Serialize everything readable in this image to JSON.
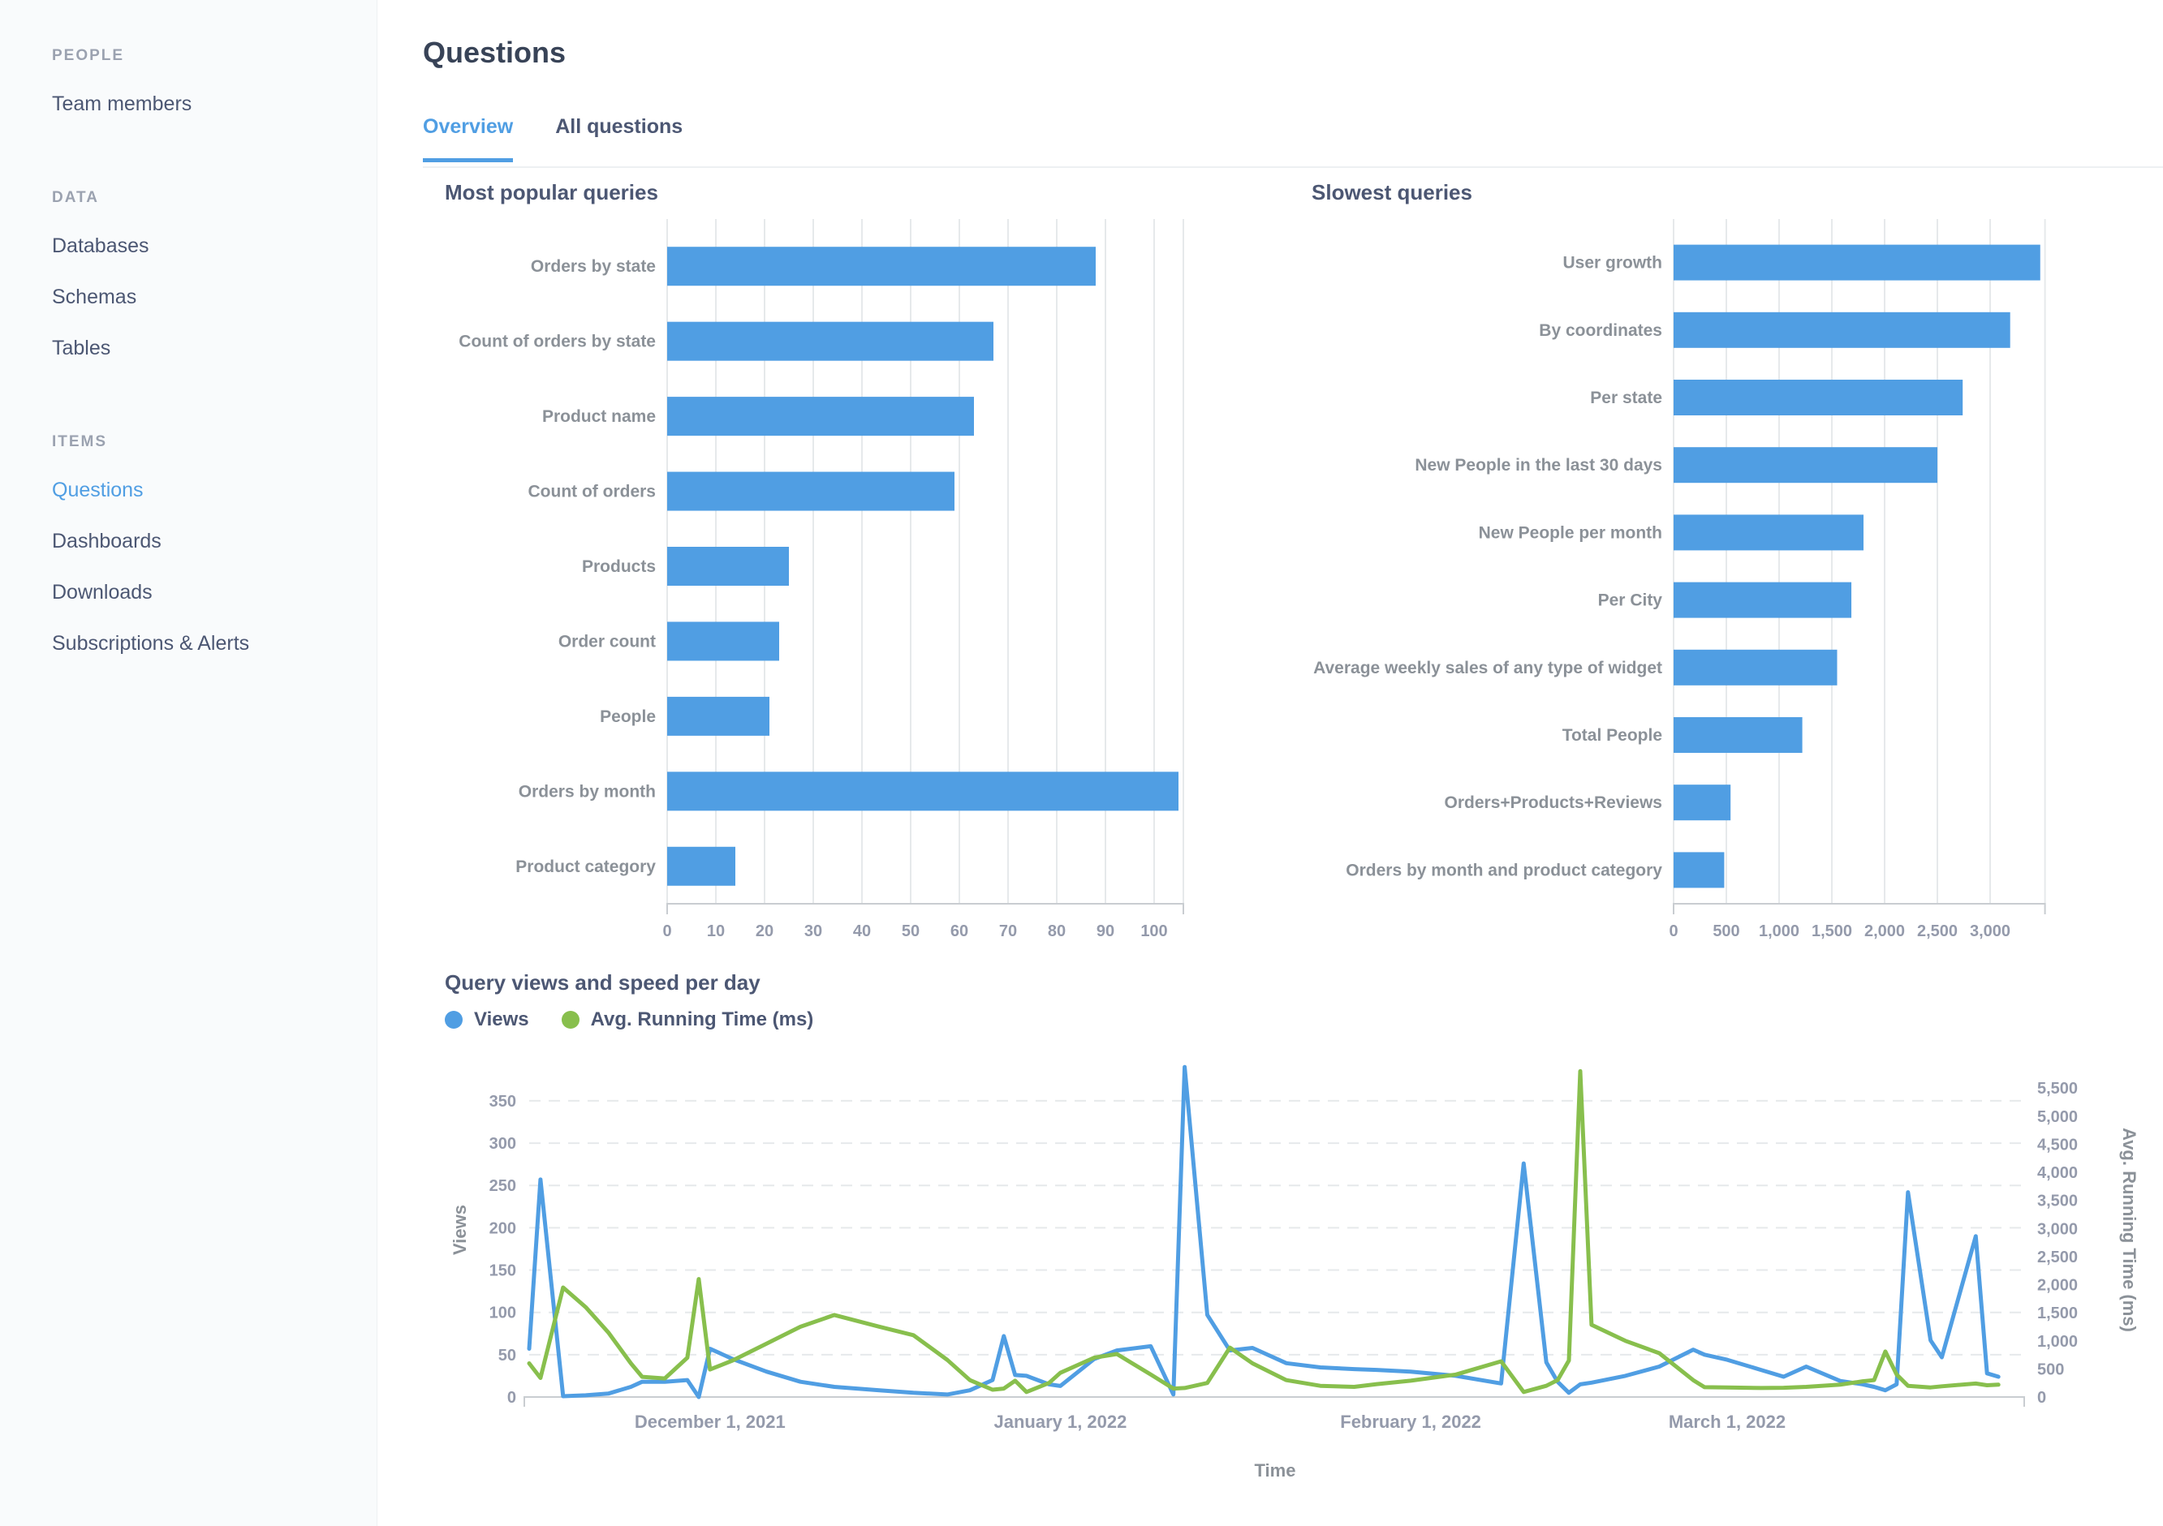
{
  "sidebar": {
    "sections": [
      {
        "header": "PEOPLE",
        "items": [
          {
            "label": "Team members",
            "active": false
          }
        ]
      },
      {
        "header": "DATA",
        "items": [
          {
            "label": "Databases",
            "active": false
          },
          {
            "label": "Schemas",
            "active": false
          },
          {
            "label": "Tables",
            "active": false
          }
        ]
      },
      {
        "header": "ITEMS",
        "items": [
          {
            "label": "Questions",
            "active": true
          },
          {
            "label": "Dashboards",
            "active": false
          },
          {
            "label": "Downloads",
            "active": false
          },
          {
            "label": "Subscriptions & Alerts",
            "active": false
          }
        ]
      }
    ]
  },
  "header": {
    "title": "Questions",
    "tabs": [
      {
        "label": "Overview",
        "active": true
      },
      {
        "label": "All questions",
        "active": false
      }
    ]
  },
  "colors": {
    "blue": "#509EE3",
    "green": "#88BF4D",
    "title": "#384357",
    "text": "#4C5773",
    "muted": "#949AAB",
    "chart_label": "#8B9198",
    "grid": "#E6E9EB",
    "axis": "#C9CDD1",
    "divider": "#EDF0F2",
    "sidebar_bg": "#F9FBFC"
  },
  "chart_data": [
    {
      "id": "most-popular-queries",
      "type": "bar",
      "title": "Most popular queries",
      "categories": [
        "Orders by state",
        "Count of orders by state",
        "Product name",
        "Count of orders",
        "Products",
        "Order count",
        "People",
        "Orders by month",
        "Product category"
      ],
      "values": [
        88,
        67,
        63,
        59,
        25,
        23,
        21,
        105,
        14
      ],
      "xlim": [
        0,
        106
      ],
      "xticks": [
        {
          "v": 0,
          "t": "0"
        },
        {
          "v": 10,
          "t": "10"
        },
        {
          "v": 20,
          "t": "20"
        },
        {
          "v": 30,
          "t": "30"
        },
        {
          "v": 40,
          "t": "40"
        },
        {
          "v": 50,
          "t": "50"
        },
        {
          "v": 60,
          "t": "60"
        },
        {
          "v": 70,
          "t": "70"
        },
        {
          "v": 80,
          "t": "80"
        },
        {
          "v": 90,
          "t": "90"
        },
        {
          "v": 100,
          "t": "100"
        }
      ],
      "bar_color": "blue",
      "grid": true,
      "legend_position": "none"
    },
    {
      "id": "slowest-queries",
      "type": "bar",
      "title": "Slowest queries",
      "categories": [
        "User growth",
        "By coordinates",
        "Per state",
        "New People in the last 30 days",
        "New People per month",
        "Per City",
        "Average weekly sales of any type of widget",
        "Total People",
        "Orders+Products+Reviews",
        "Orders by month and product category"
      ],
      "values": [
        3475,
        3190,
        2740,
        2500,
        1800,
        1685,
        1550,
        1220,
        540,
        480
      ],
      "xlim": [
        0,
        3520
      ],
      "xticks": [
        {
          "v": 0,
          "t": "0"
        },
        {
          "v": 500,
          "t": "500"
        },
        {
          "v": 1000,
          "t": "1,000"
        },
        {
          "v": 1500,
          "t": "1,500"
        },
        {
          "v": 2000,
          "t": "2,000"
        },
        {
          "v": 2500,
          "t": "2,500"
        },
        {
          "v": 3000,
          "t": "3,000"
        }
      ],
      "bar_color": "blue",
      "grid": true,
      "legend_position": "none"
    },
    {
      "id": "query-views-speed",
      "type": "line",
      "title": "Query views and speed per day",
      "xlabel": "Time",
      "legend_position": "top-left",
      "legend": [
        {
          "label": "Views",
          "color": "blue"
        },
        {
          "label": "Avg. Running Time (ms)",
          "color": "green"
        }
      ],
      "y_left": {
        "label": "Views",
        "max": 395,
        "ticks": [
          {
            "v": 0,
            "t": "0"
          },
          {
            "v": 50,
            "t": "50"
          },
          {
            "v": 100,
            "t": "100"
          },
          {
            "v": 150,
            "t": "150"
          },
          {
            "v": 200,
            "t": "200"
          },
          {
            "v": 250,
            "t": "250"
          },
          {
            "v": 300,
            "t": "300"
          },
          {
            "v": 350,
            "t": "350"
          }
        ]
      },
      "y_right": {
        "label": "Avg. Running Time (ms)",
        "max": 5950,
        "ticks": [
          {
            "v": 0,
            "t": "0"
          },
          {
            "v": 500,
            "t": "500"
          },
          {
            "v": 1000,
            "t": "1,000"
          },
          {
            "v": 1500,
            "t": "1,500"
          },
          {
            "v": 2000,
            "t": "2,000"
          },
          {
            "v": 2500,
            "t": "2,500"
          },
          {
            "v": 3000,
            "t": "3,000"
          },
          {
            "v": 3500,
            "t": "3,500"
          },
          {
            "v": 4000,
            "t": "4,000"
          },
          {
            "v": 4500,
            "t": "4,500"
          },
          {
            "v": 5000,
            "t": "5,000"
          },
          {
            "v": 5500,
            "t": "5,500"
          }
        ]
      },
      "x_axis": {
        "total_days": 132,
        "labels": [
          {
            "day": 16,
            "t": "December 1, 2021"
          },
          {
            "day": 47,
            "t": "January 1, 2022"
          },
          {
            "day": 78,
            "t": "February 1, 2022"
          },
          {
            "day": 106,
            "t": "March 1, 2022"
          }
        ]
      },
      "series": [
        {
          "name": "Views",
          "axis": "left",
          "color": "blue",
          "points": [
            [
              0,
              57
            ],
            [
              1,
              257
            ],
            [
              3,
              1
            ],
            [
              5,
              2
            ],
            [
              7,
              4
            ],
            [
              9,
              12
            ],
            [
              10,
              18
            ],
            [
              12,
              18
            ],
            [
              14,
              20
            ],
            [
              15,
              0
            ],
            [
              16,
              57
            ],
            [
              18,
              45
            ],
            [
              21,
              30
            ],
            [
              24,
              18
            ],
            [
              27,
              12
            ],
            [
              31,
              8
            ],
            [
              34,
              5
            ],
            [
              37,
              3
            ],
            [
              39,
              8
            ],
            [
              41,
              20
            ],
            [
              42,
              72
            ],
            [
              43,
              26
            ],
            [
              44,
              25
            ],
            [
              46,
              15
            ],
            [
              47,
              13
            ],
            [
              50,
              45
            ],
            [
              52,
              55
            ],
            [
              55,
              60
            ],
            [
              57,
              3
            ],
            [
              58,
              390
            ],
            [
              60,
              97
            ],
            [
              62,
              55
            ],
            [
              64,
              58
            ],
            [
              67,
              40
            ],
            [
              70,
              35
            ],
            [
              73,
              33
            ],
            [
              75,
              32
            ],
            [
              78,
              30
            ],
            [
              82,
              25
            ],
            [
              86,
              16
            ],
            [
              88,
              276
            ],
            [
              90,
              41
            ],
            [
              91,
              18
            ],
            [
              92,
              5
            ],
            [
              93,
              15
            ],
            [
              94,
              17
            ],
            [
              97,
              25
            ],
            [
              100,
              36
            ],
            [
              103,
              56
            ],
            [
              104,
              50
            ],
            [
              106,
              44
            ],
            [
              109,
              32
            ],
            [
              111,
              24
            ],
            [
              113,
              36
            ],
            [
              116,
              19
            ],
            [
              118,
              15
            ],
            [
              119,
              12
            ],
            [
              120,
              8
            ],
            [
              121,
              15
            ],
            [
              122,
              242
            ],
            [
              124,
              67
            ],
            [
              125,
              47
            ],
            [
              128,
              190
            ],
            [
              129,
              28
            ],
            [
              130,
              24
            ]
          ]
        },
        {
          "name": "Avg. Running Time (ms)",
          "axis": "right",
          "color": "green",
          "points": [
            [
              0,
              600
            ],
            [
              1,
              340
            ],
            [
              3,
              1950
            ],
            [
              5,
              1600
            ],
            [
              7,
              1150
            ],
            [
              9,
              600
            ],
            [
              10,
              360
            ],
            [
              12,
              330
            ],
            [
              14,
              700
            ],
            [
              15,
              2100
            ],
            [
              16,
              490
            ],
            [
              18,
              650
            ],
            [
              21,
              950
            ],
            [
              24,
              1250
            ],
            [
              27,
              1460
            ],
            [
              31,
              1250
            ],
            [
              34,
              1100
            ],
            [
              37,
              660
            ],
            [
              39,
              300
            ],
            [
              41,
              130
            ],
            [
              42,
              150
            ],
            [
              43,
              290
            ],
            [
              44,
              90
            ],
            [
              46,
              250
            ],
            [
              47,
              430
            ],
            [
              50,
              700
            ],
            [
              52,
              765
            ],
            [
              55,
              400
            ],
            [
              57,
              150
            ],
            [
              58,
              160
            ],
            [
              60,
              250
            ],
            [
              62,
              880
            ],
            [
              64,
              600
            ],
            [
              67,
              300
            ],
            [
              70,
              200
            ],
            [
              73,
              180
            ],
            [
              75,
              230
            ],
            [
              78,
              290
            ],
            [
              82,
              400
            ],
            [
              86,
              635
            ],
            [
              88,
              90
            ],
            [
              90,
              200
            ],
            [
              91,
              300
            ],
            [
              92,
              650
            ],
            [
              93,
              5800
            ],
            [
              94,
              1285
            ],
            [
              97,
              1000
            ],
            [
              100,
              780
            ],
            [
              103,
              300
            ],
            [
              104,
              175
            ],
            [
              106,
              170
            ],
            [
              109,
              160
            ],
            [
              111,
              165
            ],
            [
              113,
              180
            ],
            [
              116,
              220
            ],
            [
              118,
              280
            ],
            [
              119,
              300
            ],
            [
              120,
              810
            ],
            [
              121,
              400
            ],
            [
              122,
              200
            ],
            [
              124,
              170
            ],
            [
              125,
              190
            ],
            [
              128,
              240
            ],
            [
              129,
              210
            ],
            [
              130,
              220
            ]
          ]
        }
      ]
    }
  ]
}
